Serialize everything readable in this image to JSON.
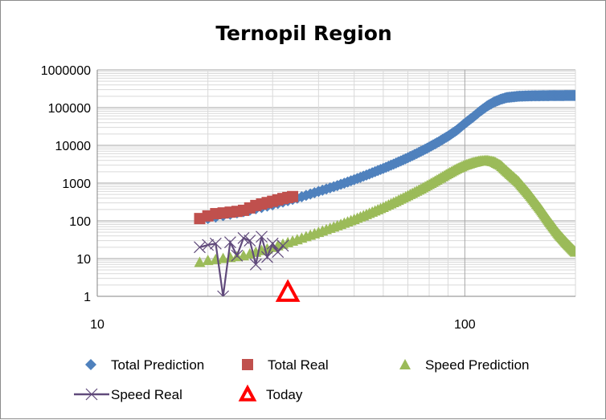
{
  "chart_data": {
    "type": "scatter",
    "title": "Ternopil Region",
    "xlabel": "",
    "ylabel": "",
    "x_scale": "log",
    "y_scale": "log",
    "xlim": [
      10,
      200
    ],
    "ylim": [
      1,
      1000000
    ],
    "x_ticks": [
      "10",
      "100"
    ],
    "y_ticks": [
      "1",
      "10",
      "100",
      "1000",
      "10000",
      "100000",
      "1000000"
    ],
    "grid": true,
    "legend_position": "bottom",
    "series": [
      {
        "name": "Total Prediction",
        "marker": "diamond",
        "color": "#4f81bd",
        "x_range": [
          20,
          200
        ],
        "points": [
          [
            20,
            115
          ],
          [
            25,
            175
          ],
          [
            30,
            265
          ],
          [
            35,
            400
          ],
          [
            40,
            600
          ],
          [
            45,
            860
          ],
          [
            50,
            1230
          ],
          [
            55,
            1750
          ],
          [
            60,
            2450
          ],
          [
            65,
            3400
          ],
          [
            70,
            4700
          ],
          [
            75,
            6500
          ],
          [
            80,
            9000
          ],
          [
            85,
            12500
          ],
          [
            90,
            17500
          ],
          [
            95,
            25000
          ],
          [
            100,
            38000
          ],
          [
            105,
            55000
          ],
          [
            110,
            80000
          ],
          [
            115,
            110000
          ],
          [
            120,
            140000
          ],
          [
            125,
            165000
          ],
          [
            130,
            185000
          ],
          [
            140,
            200000
          ],
          [
            150,
            205000
          ],
          [
            170,
            208000
          ],
          [
            200,
            210000
          ]
        ]
      },
      {
        "name": "Total Real",
        "marker": "square",
        "color": "#c0504d",
        "points": [
          [
            19,
            115
          ],
          [
            20,
            135
          ],
          [
            21,
            155
          ],
          [
            22,
            162
          ],
          [
            23,
            170
          ],
          [
            24,
            178
          ],
          [
            25,
            190
          ],
          [
            26,
            220
          ],
          [
            27,
            255
          ],
          [
            28,
            280
          ],
          [
            29,
            305
          ],
          [
            30,
            330
          ],
          [
            31,
            360
          ],
          [
            32,
            390
          ],
          [
            33,
            415
          ],
          [
            34,
            440
          ]
        ]
      },
      {
        "name": "Speed Prediction",
        "marker": "triangle",
        "color": "#9bbb59",
        "x_range": [
          19,
          200
        ],
        "points": [
          [
            19,
            8
          ],
          [
            20,
            9
          ],
          [
            25,
            12
          ],
          [
            30,
            20
          ],
          [
            35,
            32
          ],
          [
            40,
            50
          ],
          [
            45,
            75
          ],
          [
            50,
            110
          ],
          [
            55,
            160
          ],
          [
            60,
            230
          ],
          [
            65,
            330
          ],
          [
            70,
            470
          ],
          [
            75,
            660
          ],
          [
            80,
            930
          ],
          [
            85,
            1300
          ],
          [
            90,
            1800
          ],
          [
            95,
            2400
          ],
          [
            100,
            3000
          ],
          [
            105,
            3500
          ],
          [
            110,
            3900
          ],
          [
            115,
            4000
          ],
          [
            120,
            3700
          ],
          [
            125,
            3000
          ],
          [
            130,
            2100
          ],
          [
            140,
            1100
          ],
          [
            150,
            500
          ],
          [
            160,
            220
          ],
          [
            170,
            95
          ],
          [
            180,
            45
          ],
          [
            190,
            25
          ],
          [
            200,
            15
          ]
        ]
      },
      {
        "name": "Speed Real",
        "marker": "x",
        "color": "#604a7b",
        "points": [
          [
            19,
            20
          ],
          [
            20,
            23
          ],
          [
            21,
            25
          ],
          [
            22,
            1
          ],
          [
            23,
            27
          ],
          [
            24,
            12
          ],
          [
            25,
            35
          ],
          [
            26,
            30
          ],
          [
            27,
            7
          ],
          [
            28,
            38
          ],
          [
            29,
            11
          ],
          [
            30,
            25
          ],
          [
            31,
            15
          ],
          [
            32,
            22
          ]
        ]
      },
      {
        "name": "Today",
        "marker": "open-triangle",
        "color": "#ff0000",
        "points": [
          [
            33,
            1.3
          ]
        ]
      }
    ]
  }
}
